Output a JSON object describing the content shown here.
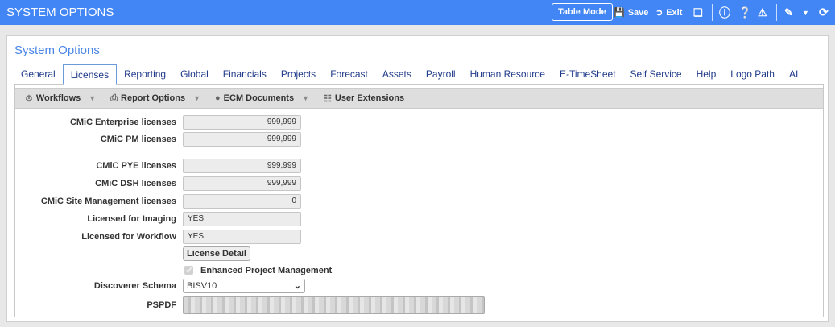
{
  "header": {
    "title": "SYSTEM OPTIONS",
    "table_mode": "Table Mode",
    "save": "Save",
    "exit": "Exit"
  },
  "panel": {
    "title": "System Options"
  },
  "tabs": [
    "General",
    "Licenses",
    "Reporting",
    "Global",
    "Financials",
    "Projects",
    "Forecast",
    "Assets",
    "Payroll",
    "Human Resource",
    "E-TimeSheet",
    "Self Service",
    "Help",
    "Logo Path",
    "AI"
  ],
  "active_tab": "Licenses",
  "toolbar": {
    "workflows": "Workflows",
    "report_options": "Report Options",
    "ecm_documents": "ECM Documents",
    "user_extensions": "User Extensions"
  },
  "fields": [
    {
      "label": "CMiC Enterprise licenses",
      "value": "999,999"
    },
    {
      "label": "CMiC PM licenses",
      "value": "999,999"
    },
    {
      "label": "CMiC PYE licenses",
      "value": "999,999"
    },
    {
      "label": "CMiC DSH licenses",
      "value": "999,999"
    },
    {
      "label": "CMiC Site Management licenses",
      "value": "0"
    },
    {
      "label": "Licensed for Imaging",
      "value": "YES"
    },
    {
      "label": "Licensed for Workflow",
      "value": "YES"
    }
  ],
  "license_detail": "License Detail",
  "enhanced_pm": {
    "label": "Enhanced Project Management",
    "checked": true
  },
  "discoverer": {
    "label": "Discoverer Schema",
    "value": "BISV10"
  },
  "pspdf": {
    "label": "PSPDF"
  }
}
